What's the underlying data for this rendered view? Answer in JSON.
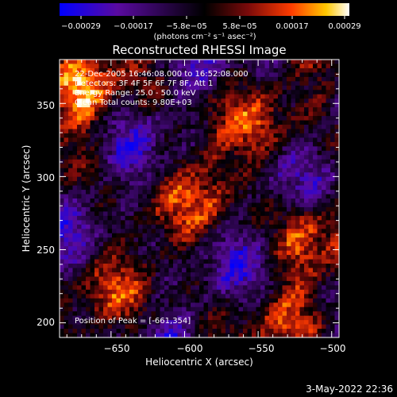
{
  "chart_data": {
    "type": "heatmap",
    "title": "Reconstructed RHESSI Image",
    "xlabel": "Heliocentric X (arcsec)",
    "ylabel": "Heliocentric Y (arcsec)",
    "xlim": [
      -685,
      -495
    ],
    "ylim": [
      190,
      380
    ],
    "xticks": [
      -650,
      -600,
      -550,
      -500
    ],
    "yticks": [
      200,
      250,
      300,
      350
    ],
    "xtick_labels": [
      "−650",
      "−600",
      "−550",
      "−500"
    ],
    "ytick_labels": [
      "200",
      "250",
      "300",
      "350"
    ],
    "colorbar": {
      "min": -0.00029,
      "max": 0.00029,
      "tick_labels": [
        "−0.00029",
        "−0.00017",
        "−5.8e−05",
        "5.8e−05",
        "0.00017",
        "0.00029"
      ],
      "unit_label": "(photons cm⁻² s⁻¹ asec⁻²)",
      "colormap": [
        "#0000ff",
        "#5a0aa0",
        "#000000",
        "#7a0a0a",
        "#ff3c00",
        "#ffc800",
        "#ffffff"
      ]
    },
    "annotations": {
      "line1": "22-Dec-2005 16:46:08.000 to 16:52:08.000",
      "line2": "Detectors: 3F 4F 5F 6F 7F 8F, Att 1",
      "line3": "Energy Range: 25.0 - 50.0 keV",
      "line4": "Clean    Total counts: 9.80E+03",
      "peak": "Position of Peak = [-661,354]"
    },
    "grid": false
  },
  "footer": {
    "date": "3-May-2022 22:36"
  }
}
